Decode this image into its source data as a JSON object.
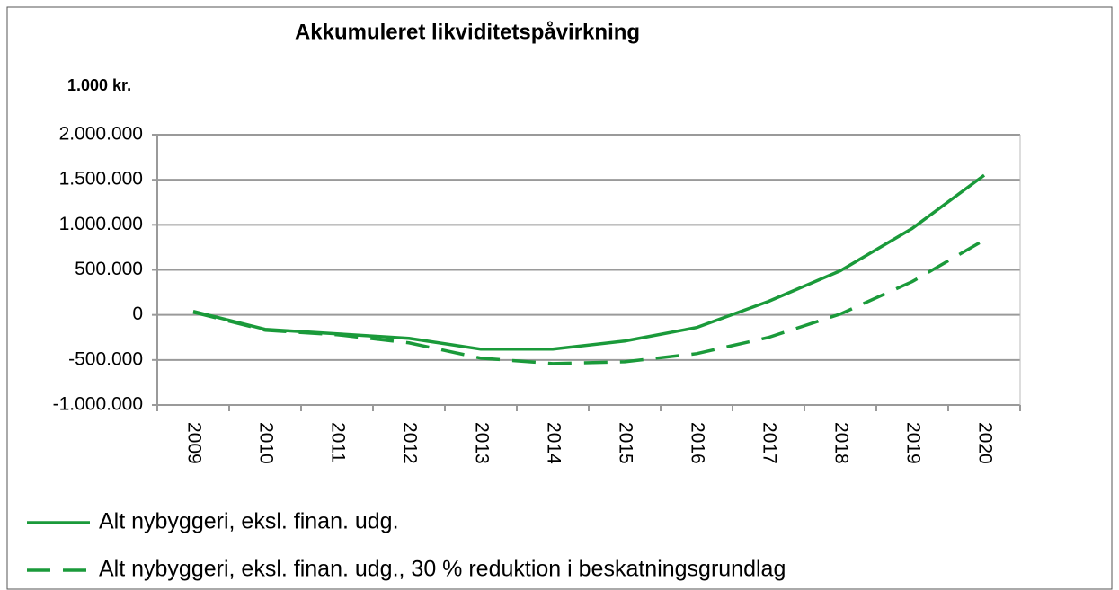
{
  "chart_data": {
    "type": "line",
    "title": "Akkumuleret likviditetspåvirkning",
    "subtitle": "1.000 kr.",
    "categories": [
      "2009",
      "2010",
      "2011",
      "2012",
      "2013",
      "2014",
      "2015",
      "2016",
      "2017",
      "2018",
      "2019",
      "2020"
    ],
    "series": [
      {
        "name": "Alt nybyggeri, eksl. finan. udg.",
        "color": "#1a9a3a",
        "style": "solid",
        "values": [
          40000,
          -160000,
          -210000,
          -260000,
          -380000,
          -380000,
          -290000,
          -140000,
          150000,
          490000,
          960000,
          1550000
        ]
      },
      {
        "name": "Alt nybyggeri, eksl. finan. udg., 30 % reduktion i beskatningsgrundlag",
        "color": "#1a9a3a",
        "style": "dashed",
        "values": [
          30000,
          -170000,
          -220000,
          -310000,
          -480000,
          -540000,
          -520000,
          -430000,
          -250000,
          10000,
          370000,
          830000
        ]
      }
    ],
    "ylim": [
      -1000000,
      2000000
    ],
    "yticks": [
      {
        "value": -1000000,
        "label": "-1.000.000"
      },
      {
        "value": -500000,
        "label": "-500.000"
      },
      0,
      {
        "value": 500000,
        "label": "500.000"
      },
      {
        "value": 1000000,
        "label": "1.000.000"
      },
      {
        "value": 1500000,
        "label": "1.500.000"
      },
      {
        "value": 2000000,
        "label": "2.000.000"
      }
    ],
    "grid": true,
    "legend": "bottom"
  }
}
